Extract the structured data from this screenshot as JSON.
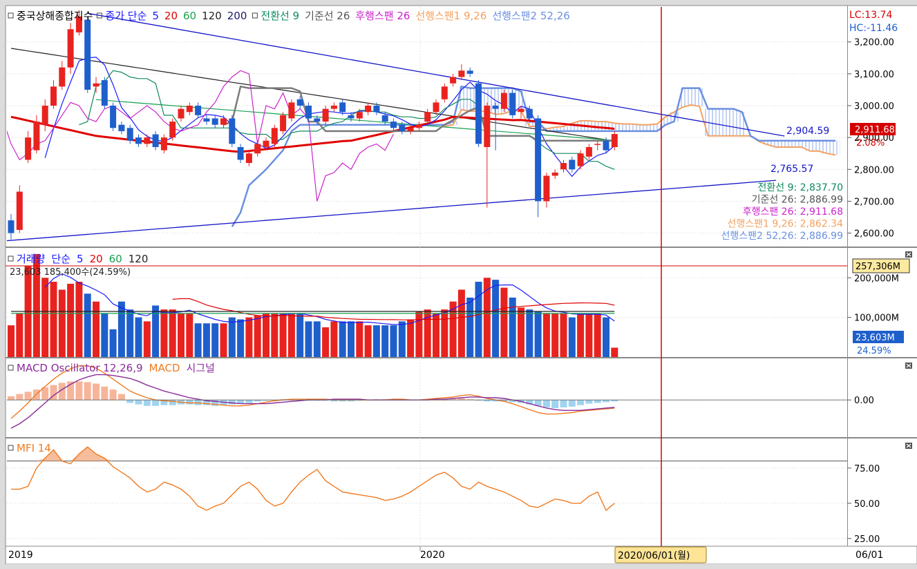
{
  "colors": {
    "up": "#e8231f",
    "down": "#1f5fcc",
    "sma5": "#1a1aff",
    "sma20": "#e00000",
    "sma60": "#17a050",
    "sma120": "#222222",
    "sma200": "#1a1a66",
    "tenkan": "#0e8a5c",
    "kijun": "#7a7a7a",
    "chikou": "#cc22cc",
    "span1": "#f4a060",
    "span2": "#6a8fe0",
    "trend": "#1414c8",
    "macd": "#f07a20",
    "signal": "#8a2a9a",
    "osc_pos": "#f6b59a",
    "osc_neg": "#9fd3f0",
    "mfi": "#f07a20",
    "crosshair": "#d40000"
  },
  "chart_data": [
    {
      "type": "candlestick",
      "title": "중국상해종합지수",
      "legend": [
        {
          "text": "종가 단순",
          "color": "#1a1aff"
        },
        {
          "text": "5",
          "color": "#1a1aff"
        },
        {
          "text": "20",
          "color": "#e00000"
        },
        {
          "text": "60",
          "color": "#17a050"
        },
        {
          "text": "120",
          "color": "#222222"
        },
        {
          "text": "200",
          "color": "#1a1a66"
        },
        {
          "text": "전환선 9",
          "color": "#0e8a5c"
        },
        {
          "text": "기준선 26",
          "color": "#555555"
        },
        {
          "text": "후행스팬 26",
          "color": "#cc22cc"
        },
        {
          "text": "선행스팬1 9,26",
          "color": "#f4a060"
        },
        {
          "text": "선행스팬2 52,26",
          "color": "#6a8fe0"
        }
      ],
      "yticks": [
        "3,200.00",
        "3,100.00",
        "3,000.00",
        "2,900.00",
        "2,800.00",
        "2,700.00",
        "2,600.00"
      ],
      "ytick_values": [
        3200,
        3100,
        3000,
        2900,
        2800,
        2700,
        2600
      ],
      "ylim": [
        2560,
        3310
      ],
      "lc_label": "LC:13.74",
      "hc_label": "HC:-11.46",
      "last_price": "2,911.68",
      "last_change": "2.08%",
      "trend_labels": [
        "2,904.59",
        "2,765.57"
      ],
      "info_lines": [
        {
          "text": "전환선 9: 2,837.70",
          "color": "#0e8a5c"
        },
        {
          "text": "기준선 26: 2,886.99",
          "color": "#555555"
        },
        {
          "text": "후행스팬 26: 2,911.68",
          "color": "#cc22cc"
        },
        {
          "text": "선행스팬1 9,26: 2,862.34",
          "color": "#f4a060"
        },
        {
          "text": "선행스팬2 52,26: 2,886.99",
          "color": "#6a8fe0"
        }
      ],
      "closes": [
        2600,
        2730,
        2900,
        2950,
        3000,
        3060,
        3120,
        3240,
        3280,
        3050,
        3070,
        3000,
        2930,
        2920,
        2890,
        2880,
        2900,
        2870,
        2900,
        2950,
        2990,
        3000,
        2970,
        2950,
        2940,
        2960,
        2880,
        2830,
        2850,
        2880,
        2890,
        2930,
        2970,
        3010,
        3000,
        2960,
        2950,
        2990,
        3000,
        2980,
        2960,
        2980,
        3000,
        2980,
        2950,
        2930,
        2920,
        2930,
        2940,
        2980,
        3010,
        3060,
        3090,
        3110,
        3100,
        2880,
        3000,
        2990,
        3040,
        2970,
        2990,
        2960,
        2700,
        2780,
        2790,
        2820,
        2800,
        2850,
        2870,
        2880,
        2860,
        2911
      ],
      "opens": [
        2640,
        2610,
        2830,
        2860,
        2940,
        3000,
        3060,
        3120,
        3230,
        3270,
        3060,
        3080,
        3000,
        2940,
        2930,
        2900,
        2880,
        2910,
        2860,
        2900,
        2960,
        2980,
        3000,
        2960,
        2960,
        2940,
        2960,
        2870,
        2820,
        2850,
        2870,
        2880,
        2920,
        2960,
        3020,
        3000,
        2960,
        2950,
        2990,
        3010,
        2970,
        2960,
        2980,
        3000,
        2970,
        2950,
        2940,
        2920,
        2930,
        2950,
        2980,
        3020,
        3070,
        3090,
        3110,
        3070,
        2870,
        3000,
        2990,
        3040,
        2980,
        2990,
        2960,
        2700,
        2780,
        2800,
        2830,
        2810,
        2840,
        2880,
        2890,
        2870
      ],
      "highs": [
        2660,
        2750,
        2920,
        2970,
        3020,
        3080,
        3140,
        3260,
        3300,
        3280,
        3090,
        3090,
        3010,
        2950,
        2940,
        2910,
        2910,
        2920,
        2910,
        2960,
        3000,
        3010,
        3010,
        2970,
        2970,
        2970,
        2970,
        2880,
        2860,
        2890,
        2900,
        2940,
        2980,
        3020,
        3030,
        3010,
        2970,
        3000,
        3010,
        3020,
        2980,
        2990,
        3010,
        3010,
        2980,
        2960,
        2950,
        2940,
        2950,
        2990,
        3020,
        3070,
        3100,
        3130,
        3120,
        3080,
        3010,
        3010,
        3050,
        3050,
        3000,
        3000,
        2970,
        2790,
        2800,
        2830,
        2840,
        2860,
        2880,
        2890,
        2900,
        2920
      ],
      "lows": [
        2580,
        2600,
        2820,
        2850,
        2920,
        2990,
        3050,
        3100,
        3220,
        3040,
        3040,
        2990,
        2920,
        2910,
        2880,
        2870,
        2870,
        2860,
        2850,
        2890,
        2950,
        2970,
        2960,
        2940,
        2930,
        2930,
        2870,
        2820,
        2810,
        2840,
        2860,
        2870,
        2910,
        2950,
        2990,
        2950,
        2940,
        2940,
        2980,
        2970,
        2950,
        2950,
        2970,
        2970,
        2940,
        2920,
        2910,
        2910,
        2920,
        2940,
        2970,
        3010,
        3060,
        3080,
        3090,
        2870,
        2680,
        2860,
        2980,
        2960,
        2960,
        2950,
        2650,
        2680,
        2770,
        2790,
        2790,
        2800,
        2830,
        2860,
        2850,
        2860
      ]
    },
    {
      "type": "bar",
      "title": "거래량",
      "legend": [
        {
          "text": "단순",
          "color": "#1a1aff"
        },
        {
          "text": "5",
          "color": "#1a1aff"
        },
        {
          "text": "20",
          "color": "#e00000"
        },
        {
          "text": "60",
          "color": "#17a050"
        },
        {
          "text": "120",
          "color": "#222222"
        }
      ],
      "subtitle": "23,603 185,400수(24.59%)",
      "yticks": [
        "200,000M",
        "100,000M"
      ],
      "ytick_values": [
        200000,
        100000
      ],
      "ylim": [
        0,
        265000
      ],
      "ref_label": "257,306M",
      "ref_value": 257306,
      "last_label": "23,603M",
      "last_pct": "24.59%",
      "values": [
        80000,
        110000,
        230000,
        260000,
        200000,
        190000,
        170000,
        185000,
        190000,
        160000,
        140000,
        110000,
        70000,
        140000,
        120000,
        100000,
        90000,
        130000,
        120000,
        120000,
        110000,
        110000,
        85000,
        85000,
        85000,
        85000,
        100000,
        95000,
        100000,
        105000,
        110000,
        110000,
        110000,
        110000,
        110000,
        90000,
        90000,
        75000,
        90000,
        90000,
        90000,
        90000,
        80000,
        80000,
        80000,
        80000,
        90000,
        95000,
        115000,
        120000,
        110000,
        120000,
        140000,
        170000,
        150000,
        190000,
        200000,
        195000,
        175000,
        150000,
        125000,
        120000,
        115000,
        110000,
        110000,
        110000,
        100000,
        110000,
        110000,
        110000,
        100000,
        23603
      ]
    },
    {
      "type": "bar",
      "title": "MACD Oscillator 12,26,9",
      "legend": [
        {
          "text": "MACD",
          "color": "#f07a20"
        },
        {
          "text": "시그널",
          "color": "#8a2a9a"
        }
      ],
      "yticks": [
        "0.00"
      ],
      "ytick_values": [
        0
      ],
      "ylim": [
        -50,
        55
      ],
      "oscillator": [
        5,
        8,
        11,
        14,
        17,
        20,
        23,
        25,
        25,
        24,
        22,
        18,
        14,
        8,
        -4,
        -6,
        -8,
        -8,
        -7,
        -7,
        -6,
        -6,
        -7,
        -7,
        -8,
        -7,
        -6,
        -5,
        -4,
        -2,
        -1,
        0,
        1,
        0,
        -1,
        -1,
        -1,
        -1,
        -2,
        -2,
        -2,
        -1,
        0,
        1,
        1,
        0,
        0,
        0,
        0,
        0,
        0,
        0,
        1,
        2,
        1,
        -1,
        -2,
        -2,
        -2,
        -3,
        -4,
        -6,
        -8,
        -10,
        -11,
        -10,
        -9,
        -7,
        -5,
        -4,
        -3,
        -2
      ],
      "macd": [
        -25,
        -15,
        -4,
        8,
        18,
        28,
        36,
        42,
        46,
        46,
        43,
        36,
        28,
        20,
        12,
        7,
        3,
        0,
        -1,
        -2,
        -3,
        -4,
        -4,
        -5,
        -6,
        -7,
        -8,
        -8,
        -7,
        -5,
        -3,
        -1,
        0,
        1,
        1,
        1,
        1,
        1,
        0,
        0,
        0,
        0,
        0,
        0,
        0,
        1,
        1,
        0,
        0,
        1,
        2,
        3,
        4,
        6,
        7,
        5,
        2,
        0,
        -2,
        -5,
        -9,
        -13,
        -17,
        -19,
        -19,
        -18,
        -17,
        -15,
        -14,
        -13,
        -12,
        -11
      ],
      "signal": [
        -38,
        -32,
        -24,
        -14,
        -4,
        6,
        14,
        21,
        27,
        31,
        34,
        34,
        33,
        31,
        29,
        25,
        20,
        16,
        12,
        9,
        6,
        3,
        1,
        -1,
        -2,
        -3,
        -4,
        -5,
        -5,
        -5,
        -5,
        -4,
        -3,
        -2,
        -1,
        0,
        0,
        0,
        1,
        1,
        1,
        1,
        0,
        0,
        0,
        0,
        0,
        0,
        0,
        0,
        1,
        1,
        2,
        3,
        4,
        4,
        3,
        3,
        2,
        0,
        -2,
        -5,
        -8,
        -11,
        -13,
        -14,
        -14,
        -14,
        -13,
        -12,
        -11,
        -10
      ]
    },
    {
      "type": "line",
      "title": "MFI 14",
      "yticks": [
        "75.00",
        "50.00",
        "25.00"
      ],
      "ytick_values": [
        75,
        50,
        25
      ],
      "ylim": [
        20,
        95
      ],
      "overbought": 80,
      "oversold": 20,
      "values": [
        60,
        60,
        62,
        75,
        82,
        88,
        80,
        78,
        85,
        90,
        85,
        82,
        76,
        72,
        68,
        62,
        58,
        60,
        65,
        63,
        60,
        55,
        48,
        45,
        48,
        50,
        56,
        62,
        65,
        60,
        52,
        48,
        50,
        58,
        65,
        70,
        74,
        66,
        62,
        58,
        57,
        56,
        55,
        54,
        52,
        53,
        55,
        58,
        62,
        66,
        70,
        72,
        68,
        62,
        60,
        65,
        62,
        60,
        58,
        55,
        52,
        48,
        47,
        50,
        53,
        52,
        50,
        50,
        55,
        58,
        45,
        50
      ]
    }
  ],
  "x_axis": {
    "labels": [
      "2019",
      "2020"
    ],
    "cursor_label": "2020/06/01(월)",
    "right_label": "06/01"
  }
}
